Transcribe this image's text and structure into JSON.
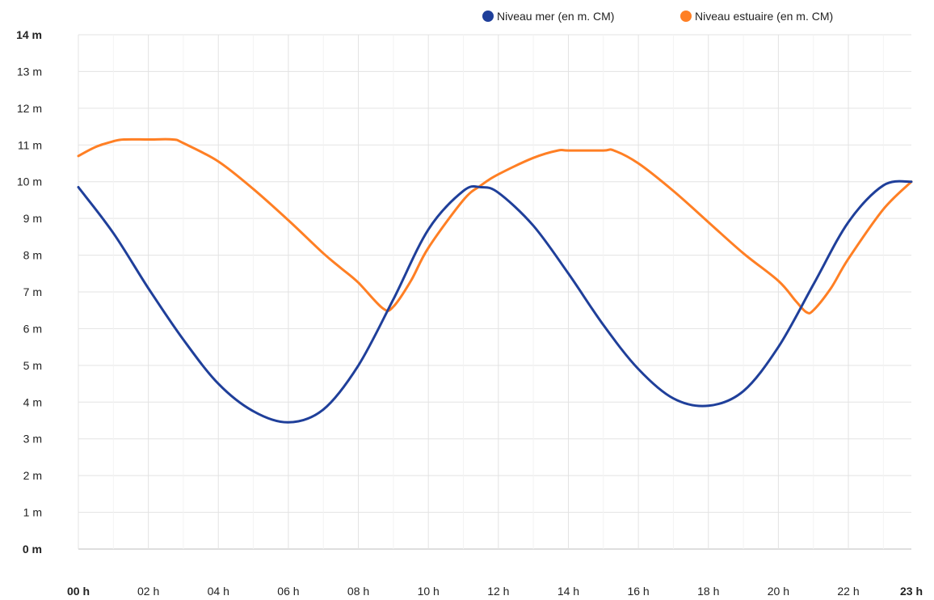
{
  "chart_data": {
    "type": "line",
    "ylim": [
      0,
      14
    ],
    "y_ticks": [
      "0 m",
      "1 m",
      "2 m",
      "3 m",
      "4 m",
      "5 m",
      "6 m",
      "7 m",
      "8 m",
      "9 m",
      "10 m",
      "11 m",
      "12 m",
      "13 m",
      "14 m"
    ],
    "x_ticks": [
      "00 h",
      "02 h",
      "04 h",
      "06 h",
      "08 h",
      "10 h",
      "12 h",
      "14 h",
      "16 h",
      "18 h",
      "20 h",
      "22 h",
      "23 h"
    ],
    "x_tick_hours": [
      0,
      2,
      4,
      6,
      8,
      10,
      12,
      14,
      16,
      18,
      20,
      22,
      23.8
    ],
    "xlim": [
      0,
      23.8
    ],
    "grid": true,
    "legend_position": "top-right",
    "series": [
      {
        "name": "Niveau mer (en m. CM)",
        "color": "#1f3f9a",
        "x": [
          0,
          1,
          2,
          3,
          4,
          5,
          6,
          7,
          8,
          9,
          10,
          11,
          11.5,
          12,
          13,
          14,
          15,
          16,
          17,
          18,
          19,
          20,
          21,
          22,
          23,
          23.8
        ],
        "values": [
          9.85,
          8.6,
          7.1,
          5.7,
          4.5,
          3.75,
          3.45,
          3.8,
          5.0,
          6.8,
          8.7,
          9.75,
          9.85,
          9.7,
          8.8,
          7.5,
          6.1,
          4.9,
          4.1,
          3.9,
          4.3,
          5.5,
          7.2,
          8.9,
          9.9,
          10.0
        ]
      },
      {
        "name": "Niveau estuaire (en m. CM)",
        "color": "#ff7f24",
        "x": [
          0,
          0.5,
          1,
          1.3,
          2,
          2.7,
          3,
          4,
          5,
          6,
          7,
          7.5,
          8,
          8.7,
          9,
          9.5,
          10,
          11,
          11.5,
          12,
          13,
          13.7,
          14,
          15,
          15.3,
          16,
          17,
          18,
          19,
          20,
          20.5,
          20.8,
          21,
          21.5,
          22,
          23,
          23.8
        ],
        "values": [
          10.7,
          10.95,
          11.1,
          11.15,
          11.15,
          11.15,
          11.05,
          10.55,
          9.8,
          8.95,
          8.05,
          7.65,
          7.25,
          6.55,
          6.6,
          7.3,
          8.2,
          9.5,
          9.9,
          10.2,
          10.65,
          10.85,
          10.85,
          10.85,
          10.85,
          10.5,
          9.75,
          8.9,
          8.05,
          7.3,
          6.75,
          6.45,
          6.5,
          7.1,
          7.9,
          9.25,
          10.0
        ]
      }
    ]
  }
}
